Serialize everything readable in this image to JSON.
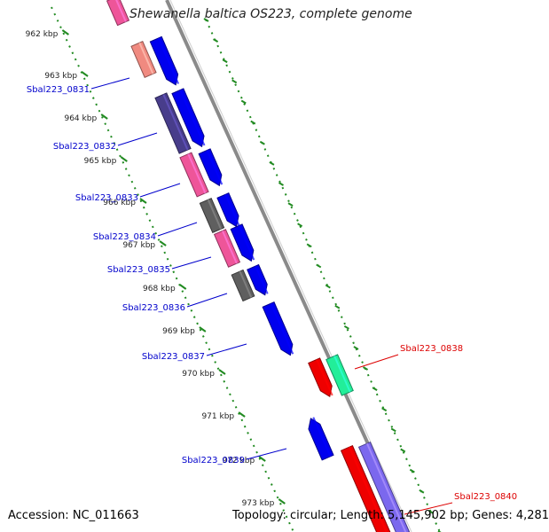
{
  "title": "Shewanella baltica OS223, complete genome",
  "footer": {
    "accession": "Accession: NC_011663",
    "topology": "Topology: circular; Length: 5,145,902 bp; Genes: 4,281"
  },
  "colors": {
    "backbone": "#8a8a8a",
    "tick": "#228b22",
    "label_forward": "#0000cc",
    "label_reverse": "#dd0000",
    "blue": "#0000ee",
    "red": "#ee0000",
    "pink": "#ee5599",
    "salmon": "#f08a80",
    "purple": "#483d8b",
    "gray": "#5f5f5f",
    "teal": "#22ee99",
    "lavender": "#7b68ee"
  },
  "kbp_ticks": [
    "962 kbp",
    "963 kbp",
    "964 kbp",
    "965 kbp",
    "966 kbp",
    "967 kbp",
    "968 kbp",
    "969 kbp",
    "970 kbp",
    "971 kbp",
    "972 kbp",
    "973 kbp"
  ],
  "gene_labels": [
    {
      "text": "Sbal223_0831",
      "strand": "forward"
    },
    {
      "text": "Sbal223_0832",
      "strand": "forward"
    },
    {
      "text": "Sbal223_0833",
      "strand": "forward"
    },
    {
      "text": "Sbal223_0834",
      "strand": "forward"
    },
    {
      "text": "Sbal223_0835",
      "strand": "forward"
    },
    {
      "text": "Sbal223_0836",
      "strand": "forward"
    },
    {
      "text": "Sbal223_0837",
      "strand": "forward"
    },
    {
      "text": "Sbal223_0839",
      "strand": "forward"
    },
    {
      "text": "Sbal223_0838",
      "strand": "reverse"
    },
    {
      "text": "Sbal223_0840",
      "strand": "reverse"
    }
  ]
}
